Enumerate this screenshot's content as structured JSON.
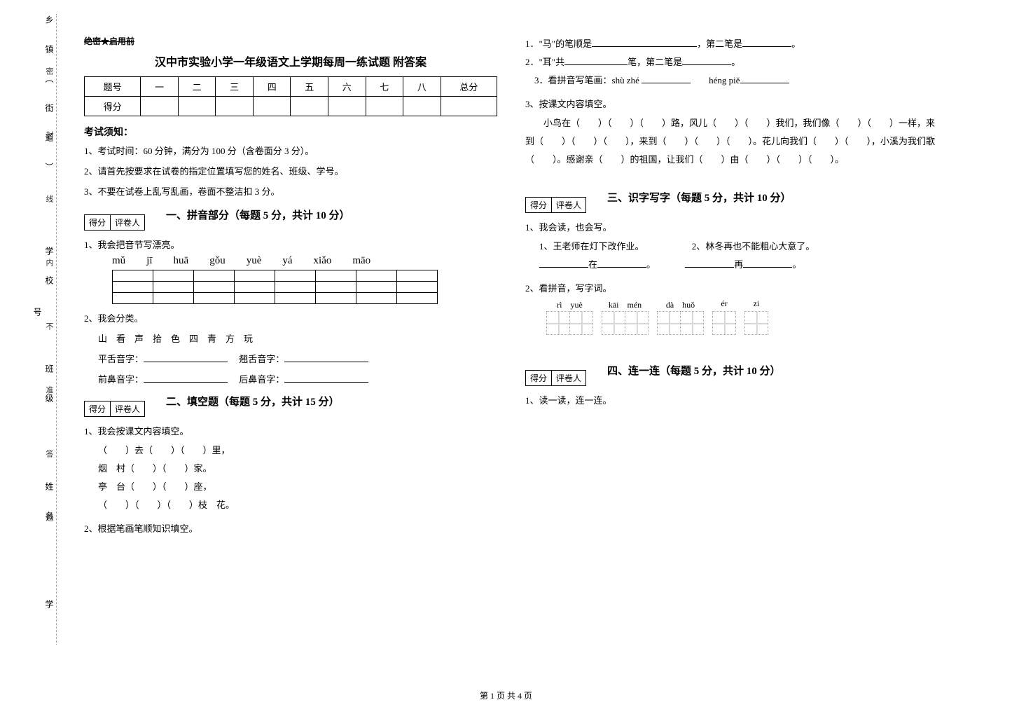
{
  "binding": {
    "outer_labels": [
      "乡镇（街道）",
      "学校",
      "班级",
      "姓名",
      "学号"
    ],
    "inner_labels": [
      "密",
      "封",
      "线",
      "内",
      "不",
      "准",
      "答",
      "题"
    ]
  },
  "secret": "绝密★启用前",
  "title": "汉中市实验小学一年级语文上学期每周一练试题 附答案",
  "score_table": {
    "row1": [
      "题号",
      "一",
      "二",
      "三",
      "四",
      "五",
      "六",
      "七",
      "八",
      "总分"
    ],
    "row2_first": "得分"
  },
  "notice": {
    "head": "考试须知：",
    "items": [
      "1、考试时间：60 分钟，满分为 100 分（含卷面分 3 分）。",
      "2、请首先按要求在试卷的指定位置填写您的姓名、班级、学号。",
      "3、不要在试卷上乱写乱画，卷面不整洁扣 3 分。"
    ]
  },
  "scorebox": {
    "a": "得分",
    "b": "评卷人"
  },
  "section1": {
    "title": "一、拼音部分（每题 5 分，共计 10 分）",
    "q1": "1、我会把音节写漂亮。",
    "pinyin": [
      "mǔ",
      "jī",
      "huā",
      "gǒu",
      "yuè",
      "yá",
      "xiǎo",
      "māo"
    ],
    "q2": "2、我会分类。",
    "chars": "山　看　声　拾　色　四　青　方　玩",
    "labels": {
      "a": "平舌音字：",
      "b": "翘舌音字：",
      "c": "前鼻音字：",
      "d": "后鼻音字："
    }
  },
  "section2": {
    "title": "二、填空题（每题 5 分，共计 15 分）",
    "q1": "1、我会按课文内容填空。",
    "lines": [
      "（　　）去（　　）（　　）里，",
      "烟　村（　　）（　　）家。",
      "亭　台（　　）（　　）座，",
      "（　　）（　　）（　　）枝　花。"
    ],
    "q2": "2、根据笔画笔顺知识填空。",
    "s1_a": "1．\"马\"的笔顺是",
    "s1_b": "，第二笔是",
    "s1_c": "。",
    "s2_a": "2．\"耳\"共",
    "s2_b": "笔，第二笔是",
    "s2_c": "。",
    "s3_a": "3．看拼音写笔画：shù zhé",
    "s3_b": "héng piě",
    "q3": "3、按课文内容填空。",
    "para": "　　小鸟在（　　）（　　）（　　）路，风儿（　　）（　　）我们，我们像（　　）（　　）一样，来到（　　）（　　）（　　），来到（　　）（　　）（　　）。花儿向我们（　　）（　　），小溪为我们歌（　　）。感谢亲（　　）的祖国，让我们（　　）由（　　）（　　）（　　）。"
  },
  "section3": {
    "title": "三、识字写字（每题 5 分，共计 10 分）",
    "q1": "1、我会读，也会写。",
    "sub1": "1、王老师在灯下改作业。",
    "sub2": "2、林冬再也不能粗心大意了。",
    "fill1a": "在",
    "fill1b": "。",
    "fill2a": "再",
    "fill2b": "。",
    "q2": "2、看拼音，写字词。",
    "pinyin_groups": [
      {
        "py": "rì　yuè",
        "n": 2
      },
      {
        "py": "kāi　mén",
        "n": 2
      },
      {
        "py": "dà　huǒ",
        "n": 2
      },
      {
        "py": "ér",
        "n": 1
      },
      {
        "py": "zi",
        "n": 1
      }
    ]
  },
  "section4": {
    "title": "四、连一连（每题 5 分，共计 10 分）",
    "q1": "1、读一读，连一连。"
  },
  "page": "第 1 页 共 4 页"
}
